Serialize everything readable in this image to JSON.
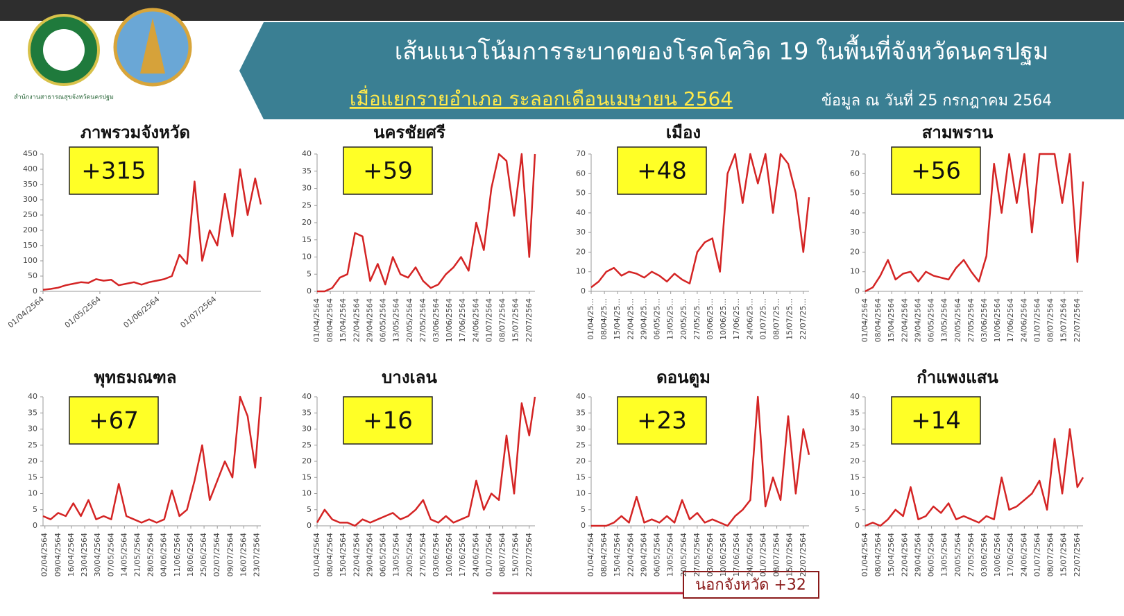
{
  "header": {
    "title": "เส้นแนวโน้มการระบาดของโรคโควิด  19 ในพื้นที่จังหวัดนครปฐม",
    "subtitle_highlight": "เมื่อแยกรายอำเภอ  ระลอกเดือนเมษายน 2564",
    "subtitle_date": "ข้อมูล ณ วันที่ 25 กรกฎาคม 2564",
    "office": "สำนักงานสาธารณสุขจังหวัดนครปฐม"
  },
  "footer_note": "นอกจังหวัด +32",
  "chart_data": [
    {
      "type": "line",
      "title": "ภาพรวมจังหวัด",
      "annotation": "+315",
      "color": "#d42424",
      "label_rotate": -40,
      "x": [
        0,
        4,
        8,
        12,
        16,
        20,
        24,
        28,
        32,
        36,
        40,
        44,
        48,
        52,
        56,
        60,
        64,
        68,
        72,
        76,
        80,
        84,
        88,
        92,
        96,
        100,
        104,
        108,
        112,
        115
      ],
      "values": [
        5,
        8,
        12,
        20,
        25,
        30,
        28,
        40,
        35,
        38,
        20,
        25,
        30,
        22,
        30,
        35,
        40,
        50,
        120,
        90,
        360,
        100,
        200,
        150,
        320,
        180,
        400,
        250,
        370,
        285
      ],
      "xlim": [
        0,
        115
      ],
      "ylim": [
        0,
        450
      ],
      "yticks": [
        0,
        50,
        100,
        150,
        200,
        250,
        300,
        350,
        400,
        450
      ],
      "xticks": [
        {
          "value": 0,
          "label": "01/04/2564"
        },
        {
          "value": 30,
          "label": "01/05/2564"
        },
        {
          "value": 61,
          "label": "01/06/2564"
        },
        {
          "value": 91,
          "label": "01/07/2564"
        }
      ]
    },
    {
      "type": "line",
      "title": "นครชัยศรี",
      "annotation": "+59",
      "color": "#d42424",
      "label_rotate": -90,
      "x": [
        0,
        4,
        8,
        12,
        16,
        20,
        24,
        28,
        32,
        36,
        40,
        44,
        48,
        52,
        56,
        60,
        64,
        68,
        72,
        76,
        80,
        84,
        88,
        92,
        96,
        100,
        104,
        108,
        112,
        115
      ],
      "values": [
        0,
        0,
        1,
        4,
        5,
        17,
        16,
        3,
        8,
        2,
        10,
        5,
        4,
        7,
        3,
        1,
        2,
        5,
        7,
        10,
        6,
        20,
        12,
        30,
        40,
        38,
        22,
        40,
        10,
        40
      ],
      "xlim": [
        0,
        115
      ],
      "ylim": [
        0,
        40
      ],
      "yticks": [
        0,
        5,
        10,
        15,
        20,
        25,
        30,
        35,
        40
      ],
      "xticks": [
        {
          "value": 0,
          "label": "01/04/2564"
        },
        {
          "value": 7,
          "label": "08/04/2564"
        },
        {
          "value": 14,
          "label": "15/04/2564"
        },
        {
          "value": 21,
          "label": "22/04/2564"
        },
        {
          "value": 28,
          "label": "29/04/2564"
        },
        {
          "value": 35,
          "label": "06/05/2564"
        },
        {
          "value": 42,
          "label": "13/05/2564"
        },
        {
          "value": 49,
          "label": "20/05/2564"
        },
        {
          "value": 56,
          "label": "27/05/2564"
        },
        {
          "value": 63,
          "label": "03/06/2564"
        },
        {
          "value": 70,
          "label": "10/06/2564"
        },
        {
          "value": 77,
          "label": "17/06/2564"
        },
        {
          "value": 84,
          "label": "24/06/2564"
        },
        {
          "value": 91,
          "label": "01/07/2564"
        },
        {
          "value": 98,
          "label": "08/07/2564"
        },
        {
          "value": 105,
          "label": "15/07/2564"
        },
        {
          "value": 112,
          "label": "22/07/2564"
        }
      ]
    },
    {
      "type": "line",
      "title": "เมือง",
      "annotation": "+48",
      "color": "#d42424",
      "label_rotate": -90,
      "x": [
        0,
        4,
        8,
        12,
        16,
        20,
        24,
        28,
        32,
        36,
        40,
        44,
        48,
        52,
        56,
        60,
        64,
        68,
        72,
        76,
        80,
        84,
        88,
        92,
        96,
        100,
        104,
        108,
        112,
        115
      ],
      "values": [
        2,
        5,
        10,
        12,
        8,
        10,
        9,
        7,
        10,
        8,
        5,
        9,
        6,
        4,
        20,
        25,
        27,
        10,
        60,
        70,
        45,
        70,
        55,
        70,
        40,
        70,
        65,
        50,
        20,
        48
      ],
      "xlim": [
        0,
        115
      ],
      "ylim": [
        0,
        70
      ],
      "yticks": [
        0,
        10,
        20,
        30,
        40,
        50,
        60,
        70
      ],
      "xticks": [
        {
          "value": 0,
          "label": "01/04/25..."
        },
        {
          "value": 7,
          "label": "08/04/25..."
        },
        {
          "value": 14,
          "label": "15/04/25..."
        },
        {
          "value": 21,
          "label": "22/04/25..."
        },
        {
          "value": 28,
          "label": "29/04/25..."
        },
        {
          "value": 35,
          "label": "06/05/25..."
        },
        {
          "value": 42,
          "label": "13/05/25..."
        },
        {
          "value": 49,
          "label": "20/05/25..."
        },
        {
          "value": 56,
          "label": "27/05/25..."
        },
        {
          "value": 63,
          "label": "03/06/25..."
        },
        {
          "value": 70,
          "label": "10/06/25..."
        },
        {
          "value": 77,
          "label": "17/06/25..."
        },
        {
          "value": 84,
          "label": "24/06/25..."
        },
        {
          "value": 91,
          "label": "01/07/25..."
        },
        {
          "value": 98,
          "label": "08/07/25..."
        },
        {
          "value": 105,
          "label": "15/07/25..."
        },
        {
          "value": 112,
          "label": "22/07/25..."
        }
      ]
    },
    {
      "type": "line",
      "title": "สามพราน",
      "annotation": "+56",
      "color": "#d42424",
      "label_rotate": -90,
      "x": [
        0,
        4,
        8,
        12,
        16,
        20,
        24,
        28,
        32,
        36,
        40,
        44,
        48,
        52,
        56,
        60,
        64,
        68,
        72,
        76,
        80,
        84,
        88,
        92,
        96,
        100,
        104,
        108,
        112,
        115
      ],
      "values": [
        0,
        2,
        8,
        16,
        6,
        9,
        10,
        5,
        10,
        8,
        7,
        6,
        12,
        16,
        10,
        5,
        18,
        65,
        40,
        70,
        45,
        70,
        30,
        70,
        70,
        70,
        45,
        70,
        15,
        56
      ],
      "xlim": [
        0,
        115
      ],
      "ylim": [
        0,
        70
      ],
      "yticks": [
        0,
        10,
        20,
        30,
        40,
        50,
        60,
        70
      ],
      "xticks": [
        {
          "value": 0,
          "label": "01/04/2564"
        },
        {
          "value": 7,
          "label": "08/04/2564"
        },
        {
          "value": 14,
          "label": "15/04/2564"
        },
        {
          "value": 21,
          "label": "22/04/2564"
        },
        {
          "value": 28,
          "label": "29/04/2564"
        },
        {
          "value": 35,
          "label": "06/05/2564"
        },
        {
          "value": 42,
          "label": "13/05/2564"
        },
        {
          "value": 49,
          "label": "20/05/2564"
        },
        {
          "value": 56,
          "label": "27/05/2564"
        },
        {
          "value": 63,
          "label": "03/06/2564"
        },
        {
          "value": 70,
          "label": "10/06/2564"
        },
        {
          "value": 77,
          "label": "17/06/2564"
        },
        {
          "value": 84,
          "label": "24/06/2564"
        },
        {
          "value": 91,
          "label": "01/07/2564"
        },
        {
          "value": 98,
          "label": "08/07/2564"
        },
        {
          "value": 105,
          "label": "15/07/2564"
        },
        {
          "value": 112,
          "label": "22/07/2564"
        }
      ]
    },
    {
      "type": "line",
      "title": "พุทธมณฑล",
      "annotation": "+67",
      "color": "#d42424",
      "label_rotate": -90,
      "x": [
        0,
        4,
        8,
        12,
        16,
        20,
        24,
        28,
        32,
        36,
        40,
        44,
        48,
        52,
        56,
        60,
        64,
        68,
        72,
        76,
        80,
        84,
        88,
        92,
        96,
        100,
        104,
        108,
        112,
        115
      ],
      "values": [
        3,
        2,
        4,
        3,
        7,
        3,
        8,
        2,
        3,
        2,
        13,
        3,
        2,
        1,
        2,
        1,
        2,
        11,
        3,
        5,
        14,
        25,
        8,
        14,
        20,
        15,
        40,
        34,
        18,
        40
      ],
      "xlim": [
        0,
        115
      ],
      "ylim": [
        0,
        40
      ],
      "yticks": [
        0,
        5,
        10,
        15,
        20,
        25,
        30,
        35,
        40
      ],
      "xticks": [
        {
          "value": 1,
          "label": "02/04/2564"
        },
        {
          "value": 8,
          "label": "09/04/2564"
        },
        {
          "value": 15,
          "label": "16/04/2564"
        },
        {
          "value": 22,
          "label": "23/04/2564"
        },
        {
          "value": 29,
          "label": "30/04/2564"
        },
        {
          "value": 36,
          "label": "07/05/2564"
        },
        {
          "value": 43,
          "label": "14/05/2564"
        },
        {
          "value": 50,
          "label": "21/05/2564"
        },
        {
          "value": 57,
          "label": "28/05/2564"
        },
        {
          "value": 64,
          "label": "04/06/2564"
        },
        {
          "value": 71,
          "label": "11/06/2564"
        },
        {
          "value": 78,
          "label": "18/06/2564"
        },
        {
          "value": 85,
          "label": "25/06/2564"
        },
        {
          "value": 92,
          "label": "02/07/2564"
        },
        {
          "value": 99,
          "label": "09/07/2564"
        },
        {
          "value": 106,
          "label": "16/07/2564"
        },
        {
          "value": 113,
          "label": "23/07/2564"
        }
      ]
    },
    {
      "type": "line",
      "title": "บางเลน",
      "annotation": "+16",
      "color": "#d42424",
      "label_rotate": -90,
      "x": [
        0,
        4,
        8,
        12,
        16,
        20,
        24,
        28,
        32,
        36,
        40,
        44,
        48,
        52,
        56,
        60,
        64,
        68,
        72,
        76,
        80,
        84,
        88,
        92,
        96,
        100,
        104,
        108,
        112,
        115
      ],
      "values": [
        1,
        5,
        2,
        1,
        1,
        0,
        2,
        1,
        2,
        3,
        4,
        2,
        3,
        5,
        8,
        2,
        1,
        3,
        1,
        2,
        3,
        14,
        5,
        10,
        8,
        28,
        10,
        38,
        28,
        40
      ],
      "xlim": [
        0,
        115
      ],
      "ylim": [
        0,
        40
      ],
      "yticks": [
        0,
        5,
        10,
        15,
        20,
        25,
        30,
        35,
        40
      ],
      "xticks": [
        {
          "value": 0,
          "label": "01/04/2564"
        },
        {
          "value": 7,
          "label": "08/04/2564"
        },
        {
          "value": 14,
          "label": "15/04/2564"
        },
        {
          "value": 21,
          "label": "22/04/2564"
        },
        {
          "value": 28,
          "label": "29/04/2564"
        },
        {
          "value": 35,
          "label": "06/05/2564"
        },
        {
          "value": 42,
          "label": "13/05/2564"
        },
        {
          "value": 49,
          "label": "20/05/2564"
        },
        {
          "value": 56,
          "label": "27/05/2564"
        },
        {
          "value": 63,
          "label": "03/06/2564"
        },
        {
          "value": 70,
          "label": "10/06/2564"
        },
        {
          "value": 77,
          "label": "17/06/2564"
        },
        {
          "value": 84,
          "label": "24/06/2564"
        },
        {
          "value": 91,
          "label": "01/07/2564"
        },
        {
          "value": 98,
          "label": "08/07/2564"
        },
        {
          "value": 105,
          "label": "15/07/2564"
        },
        {
          "value": 112,
          "label": "22/07/2564"
        }
      ]
    },
    {
      "type": "line",
      "title": "ดอนตูม",
      "annotation": "+23",
      "color": "#d42424",
      "label_rotate": -90,
      "x": [
        0,
        4,
        8,
        12,
        16,
        20,
        24,
        28,
        32,
        36,
        40,
        44,
        48,
        52,
        56,
        60,
        64,
        68,
        72,
        76,
        80,
        84,
        88,
        92,
        96,
        100,
        104,
        108,
        112,
        115
      ],
      "values": [
        0,
        0,
        0,
        1,
        3,
        1,
        9,
        1,
        2,
        1,
        3,
        1,
        8,
        2,
        4,
        1,
        2,
        1,
        0,
        3,
        5,
        8,
        40,
        6,
        15,
        8,
        34,
        10,
        30,
        22
      ],
      "xlim": [
        0,
        115
      ],
      "ylim": [
        0,
        40
      ],
      "yticks": [
        0,
        5,
        10,
        15,
        20,
        25,
        30,
        35,
        40
      ],
      "xticks": [
        {
          "value": 0,
          "label": "01/04/2564"
        },
        {
          "value": 7,
          "label": "08/04/2564"
        },
        {
          "value": 14,
          "label": "15/04/2564"
        },
        {
          "value": 21,
          "label": "22/04/2564"
        },
        {
          "value": 28,
          "label": "29/04/2564"
        },
        {
          "value": 35,
          "label": "06/05/2564"
        },
        {
          "value": 42,
          "label": "13/05/2564"
        },
        {
          "value": 49,
          "label": "20/05/2564"
        },
        {
          "value": 56,
          "label": "27/05/2564"
        },
        {
          "value": 63,
          "label": "03/06/2564"
        },
        {
          "value": 70,
          "label": "10/06/2564"
        },
        {
          "value": 77,
          "label": "17/06/2564"
        },
        {
          "value": 84,
          "label": "24/06/2564"
        },
        {
          "value": 91,
          "label": "01/07/2564"
        },
        {
          "value": 98,
          "label": "08/07/2564"
        },
        {
          "value": 105,
          "label": "15/07/2564"
        },
        {
          "value": 112,
          "label": "22/07/2564"
        }
      ]
    },
    {
      "type": "line",
      "title": "กำแพงแสน",
      "annotation": "+14",
      "color": "#d42424",
      "label_rotate": -90,
      "x": [
        0,
        4,
        8,
        12,
        16,
        20,
        24,
        28,
        32,
        36,
        40,
        44,
        48,
        52,
        56,
        60,
        64,
        68,
        72,
        76,
        80,
        84,
        88,
        92,
        96,
        100,
        104,
        108,
        112,
        115
      ],
      "values": [
        0,
        1,
        0,
        2,
        5,
        3,
        12,
        2,
        3,
        6,
        4,
        7,
        2,
        3,
        2,
        1,
        3,
        2,
        15,
        5,
        6,
        8,
        10,
        14,
        5,
        27,
        10,
        30,
        12,
        15
      ],
      "xlim": [
        0,
        115
      ],
      "ylim": [
        0,
        40
      ],
      "yticks": [
        0,
        5,
        10,
        15,
        20,
        25,
        30,
        35,
        40
      ],
      "xticks": [
        {
          "value": 0,
          "label": "01/04/2564"
        },
        {
          "value": 7,
          "label": "08/04/2564"
        },
        {
          "value": 14,
          "label": "15/04/2564"
        },
        {
          "value": 21,
          "label": "22/04/2564"
        },
        {
          "value": 28,
          "label": "29/04/2564"
        },
        {
          "value": 35,
          "label": "06/05/2564"
        },
        {
          "value": 42,
          "label": "13/05/2564"
        },
        {
          "value": 49,
          "label": "20/05/2564"
        },
        {
          "value": 56,
          "label": "27/05/2564"
        },
        {
          "value": 63,
          "label": "03/06/2564"
        },
        {
          "value": 70,
          "label": "10/06/2564"
        },
        {
          "value": 77,
          "label": "17/06/2564"
        },
        {
          "value": 84,
          "label": "24/06/2564"
        },
        {
          "value": 91,
          "label": "01/07/2564"
        },
        {
          "value": 98,
          "label": "08/07/2564"
        },
        {
          "value": 105,
          "label": "15/07/2564"
        },
        {
          "value": 112,
          "label": "22/07/2564"
        }
      ]
    }
  ]
}
